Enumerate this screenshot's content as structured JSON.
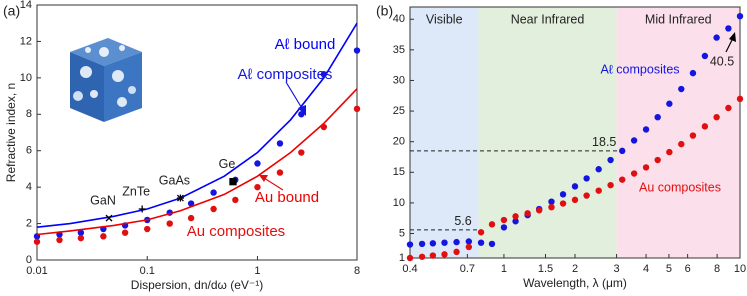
{
  "chart_data": [
    {
      "type": "scatter",
      "panel_label": "(a)",
      "xlabel": "Dispersion, dn/dω (eV⁻¹)",
      "ylabel": "Refractive index, n",
      "xscale": "log",
      "xlim": [
        0.01,
        8
      ],
      "xticks": [
        0.01,
        0.1,
        1,
        8
      ],
      "ylim": [
        0,
        14
      ],
      "yticks": [
        0,
        2,
        4,
        6,
        8,
        10,
        12,
        14
      ],
      "series": [
        {
          "name": "Aℓ bound",
          "color": "#0000ff",
          "mode": "line",
          "x": [
            0.01,
            0.02,
            0.05,
            0.1,
            0.2,
            0.5,
            1,
            2,
            4,
            8
          ],
          "values": [
            1.8,
            2.0,
            2.4,
            2.8,
            3.4,
            4.6,
            5.9,
            7.7,
            10.0,
            13.0
          ]
        },
        {
          "name": "Aℓ composites",
          "color": "#1515e0",
          "mode": "markers",
          "x": [
            0.01,
            0.016,
            0.025,
            0.04,
            0.063,
            0.1,
            0.16,
            0.25,
            0.4,
            0.63,
            1,
            1.6,
            2.5,
            4,
            8
          ],
          "values": [
            1.3,
            1.4,
            1.5,
            1.7,
            1.9,
            2.2,
            2.6,
            3.1,
            3.7,
            4.4,
            5.3,
            6.4,
            8.0,
            10.2,
            11.5
          ]
        },
        {
          "name": "Au bound",
          "color": "#ee0000",
          "mode": "line",
          "x": [
            0.01,
            0.02,
            0.05,
            0.1,
            0.2,
            0.5,
            1,
            2,
            4,
            8
          ],
          "values": [
            1.4,
            1.6,
            1.9,
            2.2,
            2.7,
            3.6,
            4.6,
            5.9,
            7.5,
            9.4
          ]
        },
        {
          "name": "Au composites",
          "color": "#e01010",
          "mode": "markers",
          "x": [
            0.01,
            0.016,
            0.025,
            0.04,
            0.063,
            0.1,
            0.16,
            0.25,
            0.4,
            0.63,
            1,
            1.6,
            2.5,
            4,
            8
          ],
          "values": [
            1.0,
            1.1,
            1.2,
            1.3,
            1.5,
            1.7,
            2.0,
            2.3,
            2.8,
            3.3,
            4.0,
            4.8,
            5.9,
            7.3,
            8.3
          ]
        }
      ],
      "points": [
        {
          "label": "GaN",
          "x": 0.045,
          "y": 2.3,
          "marker": "x"
        },
        {
          "label": "ZnTe",
          "x": 0.09,
          "y": 2.8,
          "marker": "+"
        },
        {
          "label": "GaAs",
          "x": 0.2,
          "y": 3.4,
          "marker": "*"
        },
        {
          "label": "Ge",
          "x": 0.6,
          "y": 4.3,
          "marker": "square"
        }
      ]
    },
    {
      "type": "scatter",
      "panel_label": "(b)",
      "xlabel": "Wavelength, λ (μm)",
      "xscale": "log",
      "xlim": [
        0.4,
        10
      ],
      "xticks": [
        0.4,
        0.7,
        1,
        1.5,
        2,
        3,
        4,
        5,
        6,
        8,
        10
      ],
      "ylim": [
        1,
        42
      ],
      "yticks": [
        1,
        5,
        10,
        15,
        20,
        25,
        30,
        35,
        40
      ],
      "regions": [
        {
          "label": "Visible",
          "from": 0.4,
          "to": 0.78,
          "color": "#dde9f8"
        },
        {
          "label": "Near Infrared",
          "from": 0.78,
          "to": 3,
          "color": "#e3efdd"
        },
        {
          "label": "Mid Infrared",
          "from": 3,
          "to": 10,
          "color": "#fbe0ec"
        }
      ],
      "reference_lines": [
        {
          "y": 5.6,
          "x_end": 0.8
        },
        {
          "y": 18.5,
          "x_end": 3.17
        }
      ],
      "series": [
        {
          "name": "Aℓ composites",
          "color": "#1515e0",
          "mode": "markers",
          "x": [
            0.4,
            0.45,
            0.5,
            0.56,
            0.63,
            0.71,
            0.8,
            0.89,
            1,
            1.12,
            1.26,
            1.41,
            1.59,
            1.78,
            2,
            2.24,
            2.52,
            2.83,
            3.17,
            3.56,
            4,
            4.48,
            5.02,
            5.64,
            6.32,
            7.1,
            7.96,
            8.93,
            10
          ],
          "values": [
            3.2,
            3.3,
            3.4,
            3.5,
            3.6,
            3.7,
            3.5,
            3.3,
            6.0,
            7.0,
            8.0,
            9.0,
            10.2,
            11.4,
            12.7,
            14.0,
            15.5,
            17.0,
            18.5,
            20.2,
            22.0,
            24.0,
            26.2,
            28.6,
            31.2,
            34.0,
            37.0,
            38.5,
            40.5
          ]
        },
        {
          "name": "Au composites",
          "color": "#e01010",
          "mode": "markers",
          "x": [
            0.4,
            0.45,
            0.5,
            0.56,
            0.63,
            0.71,
            0.8,
            0.89,
            1,
            1.12,
            1.26,
            1.41,
            1.59,
            1.78,
            2,
            2.24,
            2.52,
            2.83,
            3.17,
            3.56,
            4,
            4.48,
            5.02,
            5.64,
            6.32,
            7.1,
            7.96,
            8.93,
            10
          ],
          "values": [
            1.0,
            1.2,
            1.4,
            1.6,
            2.0,
            2.8,
            5.2,
            6.5,
            7.2,
            7.8,
            8.3,
            8.8,
            9.3,
            9.9,
            10.5,
            11.2,
            12.0,
            12.9,
            13.8,
            14.8,
            15.8,
            17.0,
            18.3,
            19.6,
            21.0,
            22.5,
            24.0,
            25.5,
            27.0
          ]
        }
      ]
    }
  ]
}
